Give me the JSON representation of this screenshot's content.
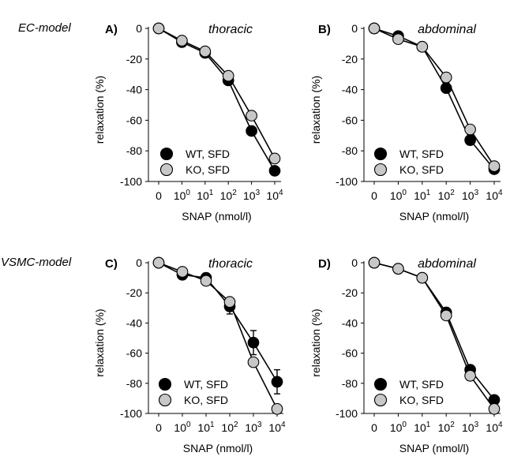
{
  "row_labels": [
    "EC-model",
    "VSMC-model"
  ],
  "chart_data": [
    {
      "type": "line",
      "panel_label": "A)",
      "title": "thoracic",
      "xlabel": "SNAP (nmol/l)",
      "ylabel": "relaxation (%)",
      "ylim": [
        -100,
        0
      ],
      "yticks": [
        "0",
        "-20",
        "-40",
        "-60",
        "-80",
        "-100"
      ],
      "categories": [
        "0",
        "10^0",
        "10^1",
        "10^2",
        "10^3",
        "10^4"
      ],
      "series": [
        {
          "name": "WT, SFD",
          "color": "#000000",
          "values": [
            0,
            -9,
            -16,
            -34,
            -67,
            -93
          ],
          "errors": [
            0,
            0,
            0,
            0,
            0,
            0
          ]
        },
        {
          "name": "KO, SFD",
          "color": "#c8c8c8",
          "values": [
            0,
            -8,
            -15,
            -31,
            -57,
            -85
          ],
          "errors": [
            0,
            0,
            0,
            0,
            0,
            0
          ]
        }
      ]
    },
    {
      "type": "line",
      "panel_label": "B)",
      "title": "abdominal",
      "xlabel": "SNAP (nmol/l)",
      "ylabel": "relaxation (%)",
      "ylim": [
        -100,
        0
      ],
      "yticks": [
        "0",
        "-20",
        "-40",
        "-60",
        "-80",
        "-100"
      ],
      "categories": [
        "0",
        "10^0",
        "10^1",
        "10^2",
        "10^3",
        "10^4"
      ],
      "series": [
        {
          "name": "WT, SFD",
          "color": "#000000",
          "values": [
            0,
            -5,
            -12,
            -39,
            -73,
            -92
          ],
          "errors": [
            0,
            0,
            0,
            0,
            0,
            0
          ]
        },
        {
          "name": "KO, SFD",
          "color": "#c8c8c8",
          "values": [
            0,
            -7,
            -12,
            -32,
            -66,
            -90
          ],
          "errors": [
            0,
            0,
            0,
            0,
            0,
            0
          ]
        }
      ]
    },
    {
      "type": "line",
      "panel_label": "C)",
      "title": "thoracic",
      "xlabel": "SNAP (nmol/l)",
      "ylabel": "relaxation (%)",
      "ylim": [
        -100,
        0
      ],
      "yticks": [
        "0",
        "-20",
        "-40",
        "-60",
        "-80",
        "-100"
      ],
      "categories": [
        "0",
        "10^0",
        "10^1",
        "10^2",
        "10^3",
        "10^4"
      ],
      "series": [
        {
          "name": "WT, SFD",
          "color": "#000000",
          "values": [
            0,
            -8,
            -10,
            -29,
            -53,
            -79
          ],
          "errors": [
            0,
            2,
            3,
            5,
            8,
            8
          ]
        },
        {
          "name": "KO, SFD",
          "color": "#c8c8c8",
          "values": [
            0,
            -6,
            -12,
            -26,
            -66,
            -97
          ],
          "errors": [
            0,
            0,
            0,
            0,
            0,
            0
          ]
        }
      ]
    },
    {
      "type": "line",
      "panel_label": "D)",
      "title": "abdominal",
      "xlabel": "SNAP (nmol/l)",
      "ylabel": "relaxation (%)",
      "ylim": [
        -100,
        0
      ],
      "yticks": [
        "0",
        "-20",
        "-40",
        "-60",
        "-80",
        "-100"
      ],
      "categories": [
        "0",
        "10^0",
        "10^1",
        "10^2",
        "10^3",
        "10^4"
      ],
      "series": [
        {
          "name": "WT, SFD",
          "color": "#000000",
          "values": [
            0,
            -4,
            -10,
            -33,
            -71,
            -91
          ],
          "errors": [
            0,
            0,
            0,
            3,
            3,
            0
          ]
        },
        {
          "name": "KO, SFD",
          "color": "#c8c8c8",
          "values": [
            0,
            -4,
            -10,
            -35,
            -75,
            -97
          ],
          "errors": [
            0,
            0,
            0,
            0,
            0,
            0
          ]
        }
      ]
    }
  ]
}
